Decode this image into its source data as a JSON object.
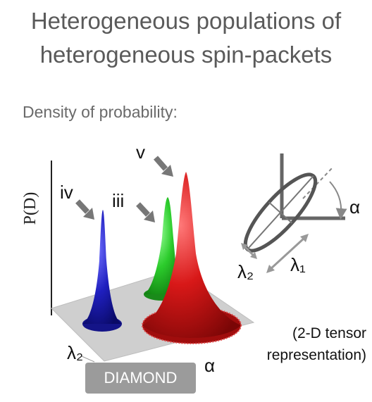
{
  "title": {
    "line1": "Heterogeneous populations of",
    "line2": "heterogeneous spin-packets"
  },
  "subtitle": "Density of probability:",
  "plot": {
    "y_axis_label": "P(D)",
    "peak_labels": [
      "iv",
      "iii",
      "v"
    ],
    "peak_colors": [
      "#1a1aa8",
      "#22c022",
      "#cc1111"
    ],
    "x_axis_label_left": "λ₂",
    "x_axis_label_right": "α"
  },
  "tensor": {
    "angle_label": "α",
    "minor_axis_label": "λ₂",
    "major_axis_label": "λ₁",
    "note_line1": "(2-D tensor",
    "note_line2": "representation)"
  },
  "method_button": "DIAMOND"
}
